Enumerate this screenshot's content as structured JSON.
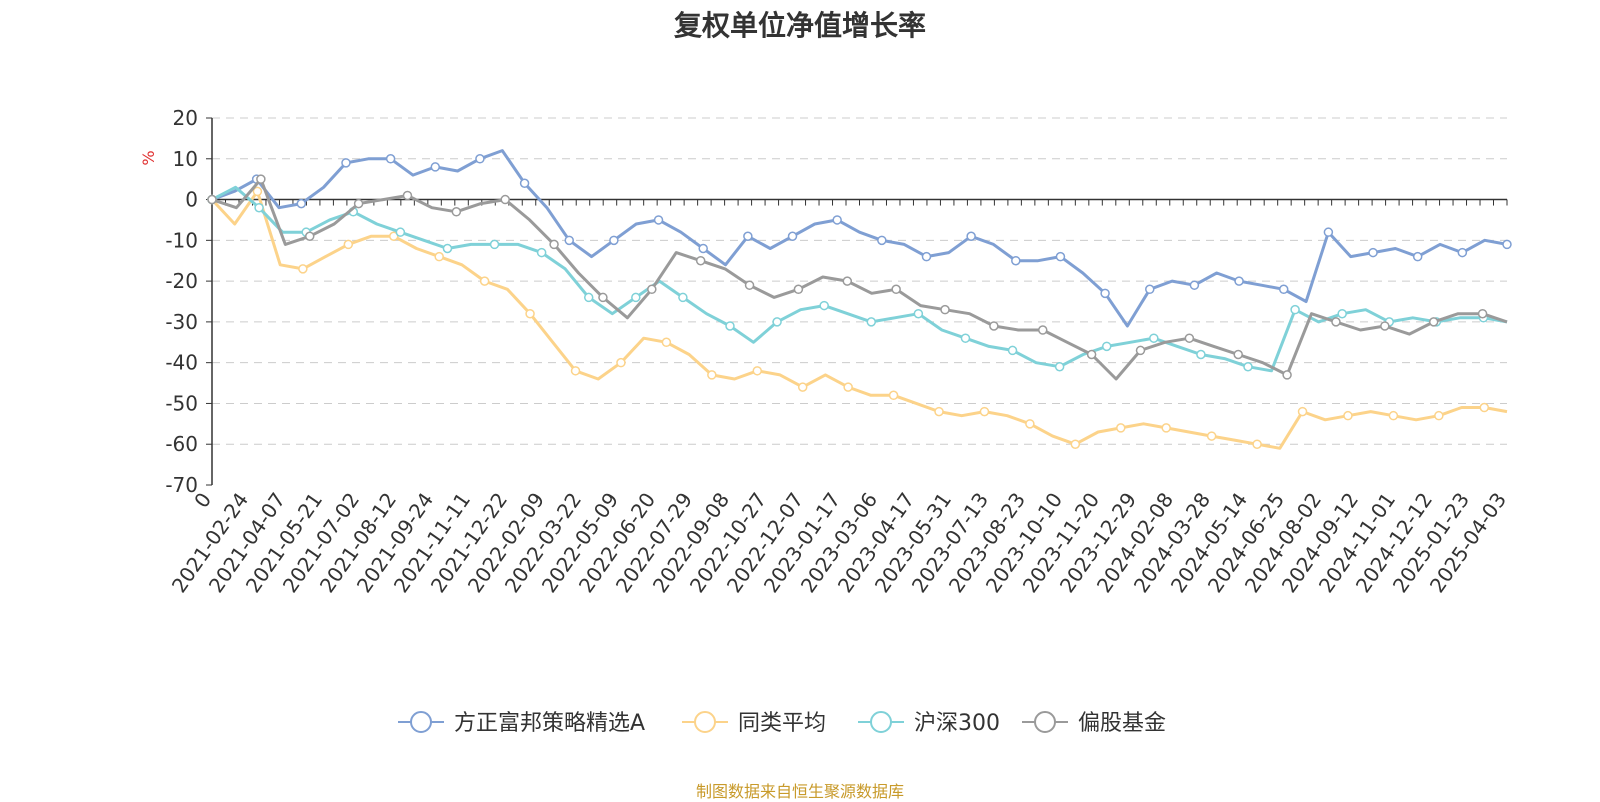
{
  "chart_data": {
    "type": "line",
    "title": "复权单位净值增长率",
    "ylabel": "%",
    "ylim": [
      -70,
      20
    ],
    "yticks": [
      20,
      10,
      0,
      -10,
      -20,
      -30,
      -40,
      -50,
      -60,
      -70
    ],
    "grid": true,
    "legend_position": "bottom-center",
    "source_note": "制图数据来自恒生聚源数据库",
    "x_tick_labels": [
      "0",
      "2021-02-24",
      "2021-04-07",
      "2021-05-21",
      "2021-07-02",
      "2021-08-12",
      "2021-09-24",
      "2021-11-11",
      "2021-12-22",
      "2022-02-09",
      "2022-03-22",
      "2022-05-09",
      "2022-06-20",
      "2022-07-29",
      "2022-09-08",
      "2022-10-27",
      "2022-12-07",
      "2023-01-17",
      "2023-03-06",
      "2023-04-17",
      "2023-05-31",
      "2023-07-13",
      "2023-08-23",
      "2023-10-10",
      "2023-11-20",
      "2023-12-29",
      "2024-02-08",
      "2024-03-28",
      "2024-05-14",
      "2024-06-25",
      "2024-08-02",
      "2024-09-12",
      "2024-11-01",
      "2024-12-12",
      "2025-01-23",
      "2025-04-03"
    ],
    "series": [
      {
        "name": "方正富邦策略精选A",
        "color": "#7f9fd3",
        "values": [
          0,
          2,
          5,
          -2,
          -1,
          3,
          9,
          10,
          10,
          6,
          8,
          7,
          10,
          12,
          4,
          -2,
          -10,
          -14,
          -10,
          -6,
          -5,
          -8,
          -12,
          -16,
          -9,
          -12,
          -9,
          -6,
          -5,
          -8,
          -10,
          -11,
          -14,
          -13,
          -9,
          -11,
          -15,
          -15,
          -14,
          -18,
          -23,
          -31,
          -22,
          -20,
          -21,
          -18,
          -20,
          -21,
          -22,
          -25,
          -8,
          -14,
          -13,
          -12,
          -14,
          -11,
          -13,
          -10,
          -11
        ],
        "markers": [
          0,
          2,
          4,
          6,
          8,
          10,
          12,
          14,
          16,
          18,
          20,
          22,
          24,
          26,
          28,
          30,
          32,
          34,
          36,
          38,
          40,
          42,
          44,
          46,
          48,
          50,
          52,
          54,
          56,
          58
        ]
      },
      {
        "name": "同类平均",
        "color": "#fcd38a",
        "values": [
          0,
          -6,
          2,
          -16,
          -17,
          -14,
          -11,
          -9,
          -9,
          -12,
          -14,
          -16,
          -20,
          -22,
          -28,
          -35,
          -42,
          -44,
          -40,
          -34,
          -35,
          -38,
          -43,
          -44,
          -42,
          -43,
          -46,
          -43,
          -46,
          -48,
          -48,
          -50,
          -52,
          -53,
          -52,
          -53,
          -55,
          -58,
          -60,
          -57,
          -56,
          -55,
          -56,
          -57,
          -58,
          -59,
          -60,
          -61,
          -52,
          -54,
          -53,
          -52,
          -53,
          -54,
          -53,
          -51,
          -51,
          -52
        ],
        "markers": [
          0,
          2,
          4,
          6,
          8,
          10,
          12,
          14,
          16,
          18,
          20,
          22,
          24,
          26,
          28,
          30,
          32,
          34,
          36,
          38,
          40,
          42,
          44,
          46,
          48,
          50,
          52,
          54,
          56
        ]
      },
      {
        "name": "沪深300",
        "color": "#7fd1d8",
        "values": [
          0,
          3,
          -2,
          -8,
          -8,
          -5,
          -3,
          -6,
          -8,
          -10,
          -12,
          -11,
          -11,
          -11,
          -13,
          -17,
          -24,
          -28,
          -24,
          -20,
          -24,
          -28,
          -31,
          -35,
          -30,
          -27,
          -26,
          -28,
          -30,
          -29,
          -28,
          -32,
          -34,
          -36,
          -37,
          -40,
          -41,
          -38,
          -36,
          -35,
          -34,
          -36,
          -38,
          -39,
          -41,
          -42,
          -27,
          -30,
          -28,
          -27,
          -30,
          -29,
          -30,
          -29,
          -29,
          -30
        ],
        "markers": [
          0,
          2,
          4,
          6,
          8,
          10,
          12,
          14,
          16,
          18,
          20,
          22,
          24,
          26,
          28,
          30,
          32,
          34,
          36,
          38,
          40,
          42,
          44,
          46,
          48,
          50,
          52,
          54
        ]
      },
      {
        "name": "偏股基金",
        "color": "#9a9a9a",
        "values": [
          0,
          -2,
          5,
          -11,
          -9,
          -6,
          -1,
          0,
          1,
          -2,
          -3,
          -1,
          0,
          -5,
          -11,
          -18,
          -24,
          -29,
          -22,
          -13,
          -15,
          -17,
          -21,
          -24,
          -22,
          -19,
          -20,
          -23,
          -22,
          -26,
          -27,
          -28,
          -31,
          -32,
          -32,
          -35,
          -38,
          -44,
          -37,
          -35,
          -34,
          -36,
          -38,
          -40,
          -43,
          -28,
          -30,
          -32,
          -31,
          -33,
          -30,
          -28,
          -28,
          -30
        ],
        "markers": [
          0,
          2,
          4,
          6,
          8,
          10,
          12,
          14,
          16,
          18,
          20,
          22,
          24,
          26,
          28,
          30,
          32,
          34,
          36,
          38,
          40,
          42,
          44,
          46,
          48,
          50,
          52
        ]
      }
    ]
  }
}
